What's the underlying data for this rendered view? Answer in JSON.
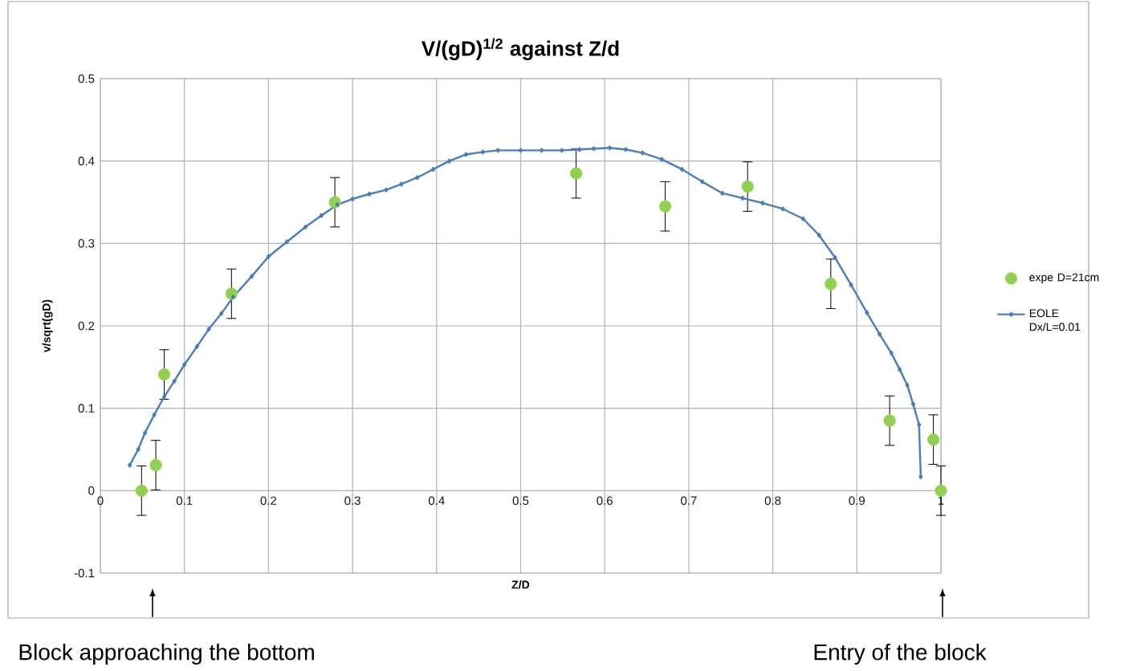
{
  "chart_data": {
    "type": "scatter",
    "title": "V/(gD)$^{1/2}$ against Z/d",
    "xlabel": "Z/D",
    "ylabel": "v/sqrt(gD)",
    "xlim": [
      0,
      1
    ],
    "ylim": [
      -0.1,
      0.5
    ],
    "xticks": [
      0,
      0.1,
      0.2,
      0.3,
      0.4,
      0.5,
      0.6,
      0.7,
      0.8,
      0.9,
      1
    ],
    "yticks": [
      -0.1,
      0,
      0.1,
      0.2,
      0.3,
      0.4,
      0.5
    ],
    "grid": true,
    "legend": "right",
    "series": [
      {
        "name": "expe  D=21cm",
        "marker": "circle",
        "color": "#92d050",
        "x": [
          0.049,
          0.066,
          0.076,
          0.156,
          0.279,
          0.566,
          0.672,
          0.77,
          0.869,
          0.939,
          0.991,
          1.0
        ],
        "values": [
          0,
          0.031,
          0.141,
          0.239,
          0.35,
          0.385,
          0.345,
          0.369,
          0.251,
          0.085,
          0.062,
          0
        ],
        "errors": [
          0.03,
          0.03,
          0.03,
          0.03,
          0.03,
          0.03,
          0.03,
          0.03,
          0.03,
          0.03,
          0.03,
          0.03
        ]
      },
      {
        "name": "EOLE Dx/L=0.01",
        "type": "line",
        "marker": "diamond",
        "line_style": "solid",
        "color": "#4a7ebb",
        "x": [
          0.035,
          0.045,
          0.053,
          0.064,
          0.076,
          0.088,
          0.1,
          0.115,
          0.129,
          0.144,
          0.158,
          0.18,
          0.2,
          0.222,
          0.244,
          0.263,
          0.282,
          0.3,
          0.32,
          0.34,
          0.358,
          0.377,
          0.396,
          0.415,
          0.435,
          0.455,
          0.473,
          0.5,
          0.525,
          0.549,
          0.57,
          0.587,
          0.606,
          0.625,
          0.645,
          0.668,
          0.692,
          0.716,
          0.74,
          0.764,
          0.788,
          0.812,
          0.836,
          0.855,
          0.874,
          0.893,
          0.912,
          0.927,
          0.941,
          0.951,
          0.96,
          0.967,
          0.974,
          0.976
        ],
        "values": [
          0.031,
          0.05,
          0.07,
          0.092,
          0.114,
          0.133,
          0.153,
          0.175,
          0.196,
          0.215,
          0.235,
          0.26,
          0.284,
          0.302,
          0.32,
          0.334,
          0.347,
          0.354,
          0.36,
          0.365,
          0.372,
          0.38,
          0.39,
          0.4,
          0.408,
          0.411,
          0.413,
          0.413,
          0.413,
          0.413,
          0.414,
          0.415,
          0.416,
          0.414,
          0.41,
          0.402,
          0.39,
          0.375,
          0.361,
          0.355,
          0.349,
          0.342,
          0.33,
          0.31,
          0.283,
          0.25,
          0.216,
          0.19,
          0.167,
          0.147,
          0.128,
          0.105,
          0.08,
          0.017
        ]
      }
    ],
    "annotations": [
      "Block approaching the bottom",
      "Entry of the block"
    ]
  }
}
